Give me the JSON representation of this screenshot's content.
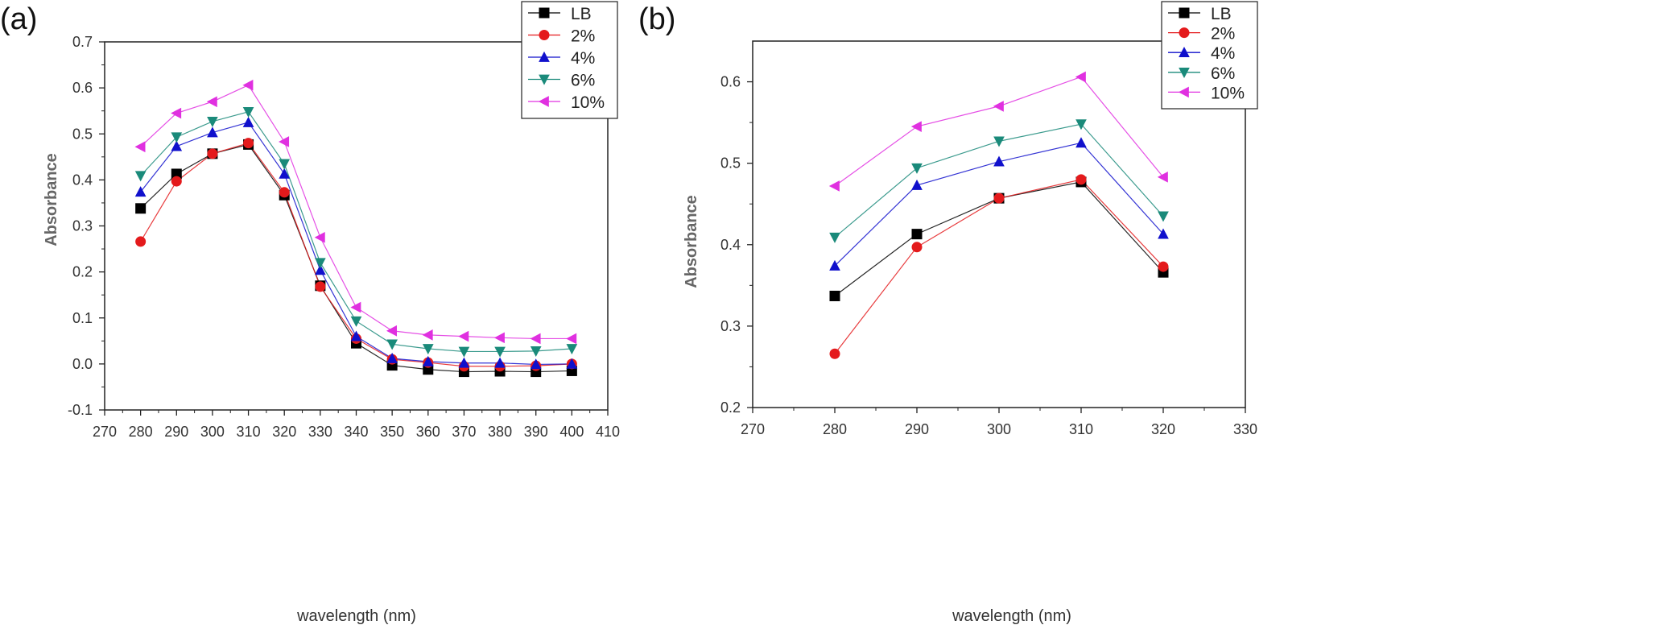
{
  "chart_data": [
    {
      "type": "line",
      "panel_label": "(a)",
      "xlabel": "wavelength (nm)",
      "ylabel": "Absorbance",
      "xlim": [
        270,
        410
      ],
      "ylim": [
        -0.1,
        0.7
      ],
      "xticks": [
        270,
        280,
        290,
        300,
        310,
        320,
        330,
        340,
        350,
        360,
        370,
        380,
        390,
        400,
        410
      ],
      "yticks": [
        -0.1,
        0.0,
        0.1,
        0.2,
        0.3,
        0.4,
        0.5,
        0.6,
        0.7
      ],
      "xtick_labels": [
        "270",
        "280",
        "290",
        "300",
        "310",
        "320",
        "330",
        "340",
        "350",
        "360",
        "370",
        "380",
        "390",
        "400",
        "410"
      ],
      "ytick_labels": [
        "-0.1",
        "0.0",
        "0.1",
        "0.2",
        "0.3",
        "0.4",
        "0.5",
        "0.6",
        "0.7"
      ],
      "legend_position": "top-right",
      "x": [
        280,
        290,
        300,
        310,
        320,
        330,
        340,
        350,
        360,
        370,
        380,
        390,
        400
      ],
      "series": [
        {
          "name": "LB",
          "color": "#000000",
          "marker": "square",
          "values": [
            0.338,
            0.413,
            0.457,
            0.477,
            0.367,
            0.17,
            0.045,
            -0.003,
            -0.012,
            -0.017,
            -0.016,
            -0.017,
            -0.015
          ]
        },
        {
          "name": "2%",
          "color": "#e41a1c",
          "marker": "circle",
          "values": [
            0.266,
            0.397,
            0.457,
            0.48,
            0.373,
            0.168,
            0.055,
            0.01,
            0.003,
            -0.005,
            -0.005,
            -0.004,
            0.0
          ]
        },
        {
          "name": "4%",
          "color": "#1010cc",
          "marker": "triangle-up",
          "values": [
            0.374,
            0.473,
            0.503,
            0.525,
            0.413,
            0.204,
            0.06,
            0.012,
            0.005,
            0.002,
            0.002,
            -0.001,
            0.0
          ]
        },
        {
          "name": "6%",
          "color": "#1a8a7a",
          "marker": "triangle-down",
          "values": [
            0.409,
            0.493,
            0.527,
            0.548,
            0.435,
            0.22,
            0.093,
            0.043,
            0.033,
            0.027,
            0.027,
            0.028,
            0.033
          ]
        },
        {
          "name": "10%",
          "color": "#e030e0",
          "marker": "triangle-left",
          "values": [
            0.472,
            0.545,
            0.57,
            0.606,
            0.483,
            0.275,
            0.123,
            0.072,
            0.063,
            0.06,
            0.057,
            0.055,
            0.055
          ]
        }
      ]
    },
    {
      "type": "line",
      "panel_label": "(b)",
      "xlabel": "wavelength (nm)",
      "ylabel": "Absorbance",
      "xlim": [
        270,
        330
      ],
      "ylim": [
        0.2,
        0.65
      ],
      "xticks": [
        270,
        280,
        290,
        300,
        310,
        320,
        330
      ],
      "yticks": [
        0.2,
        0.3,
        0.4,
        0.5,
        0.6
      ],
      "xtick_labels": [
        "270",
        "280",
        "290",
        "300",
        "310",
        "320",
        "330"
      ],
      "ytick_labels": [
        "0.2",
        "0.3",
        "0.4",
        "0.5",
        "0.6"
      ],
      "legend_position": "top-right",
      "x": [
        280,
        290,
        300,
        310,
        320
      ],
      "series": [
        {
          "name": "LB",
          "color": "#000000",
          "marker": "square",
          "values": [
            0.337,
            0.413,
            0.457,
            0.477,
            0.366
          ]
        },
        {
          "name": "2%",
          "color": "#e41a1c",
          "marker": "circle",
          "values": [
            0.266,
            0.397,
            0.457,
            0.48,
            0.373
          ]
        },
        {
          "name": "4%",
          "color": "#1010cc",
          "marker": "triangle-up",
          "values": [
            0.374,
            0.473,
            0.502,
            0.525,
            0.413
          ]
        },
        {
          "name": "6%",
          "color": "#1a8a7a",
          "marker": "triangle-down",
          "values": [
            0.409,
            0.494,
            0.527,
            0.548,
            0.435
          ]
        },
        {
          "name": "10%",
          "color": "#e030e0",
          "marker": "triangle-left",
          "values": [
            0.472,
            0.545,
            0.57,
            0.606,
            0.483
          ]
        }
      ]
    }
  ]
}
